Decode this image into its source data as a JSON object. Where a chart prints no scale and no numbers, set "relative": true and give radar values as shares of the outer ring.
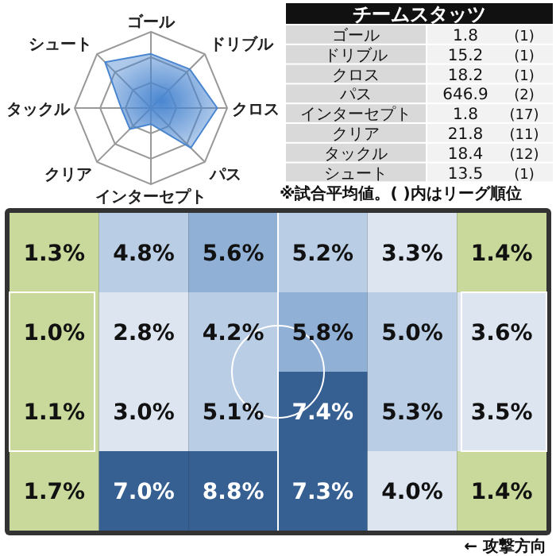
{
  "chart_data": [
    {
      "type": "radar",
      "relative": true,
      "categories": [
        "ゴール",
        "ドリブル",
        "クロス",
        "パス",
        "インターセプト",
        "クリア",
        "タックル",
        "シュート"
      ],
      "series": [
        {
          "color": "#4a86d0",
          "values": [
            0.71,
            0.72,
            0.87,
            0.74,
            0.21,
            0.39,
            0.39,
            0.85
          ]
        }
      ]
    },
    {
      "type": "other",
      "title": "チームスタッツ",
      "data_labels": true,
      "categories": [
        "ゴール",
        "ドリブル",
        "クロス",
        "パス",
        "インターセプト",
        "クリア",
        "タックル",
        "シュート"
      ],
      "series": [
        {
          "values": [
            1.8,
            15.2,
            18.2,
            646.9,
            1.8,
            21.8,
            18.4,
            13.5
          ]
        },
        {
          "values": [
            1,
            1,
            1,
            2,
            17,
            11,
            12,
            1
          ],
          "value_labels": [
            "(1)",
            "(1)",
            "(1)",
            "(2)",
            "(17)",
            "(11)",
            "(12)",
            "(1)"
          ]
        }
      ],
      "annotations": [
        "※試合平均値。( )内はリーグ順位"
      ]
    },
    {
      "type": "heatmap",
      "categories": [
        null,
        null,
        null,
        null,
        null,
        null
      ],
      "y_categories": [
        null,
        null,
        null,
        null
      ],
      "cells": [
        [
          1.3,
          4.8,
          5.6,
          5.2,
          3.3,
          1.4
        ],
        [
          1.0,
          2.8,
          4.2,
          5.8,
          5.0,
          3.6
        ],
        [
          1.1,
          3.0,
          5.1,
          7.4,
          5.3,
          3.5
        ],
        [
          1.7,
          7.0,
          8.8,
          7.3,
          4.0,
          1.4
        ]
      ],
      "cell_labels": [
        [
          "1.3%",
          "4.8%",
          "5.6%",
          "5.2%",
          "3.3%",
          "1.4%"
        ],
        [
          "1.0%",
          "2.8%",
          "4.2%",
          "5.8%",
          "5.0%",
          "3.6%"
        ],
        [
          "1.1%",
          "3.0%",
          "5.1%",
          "7.4%",
          "5.3%",
          "3.5%"
        ],
        [
          "1.7%",
          "7.0%",
          "8.8%",
          "7.3%",
          "4.0%",
          "1.4%"
        ]
      ],
      "annotations": [
        "← 攻撃方向"
      ]
    }
  ]
}
